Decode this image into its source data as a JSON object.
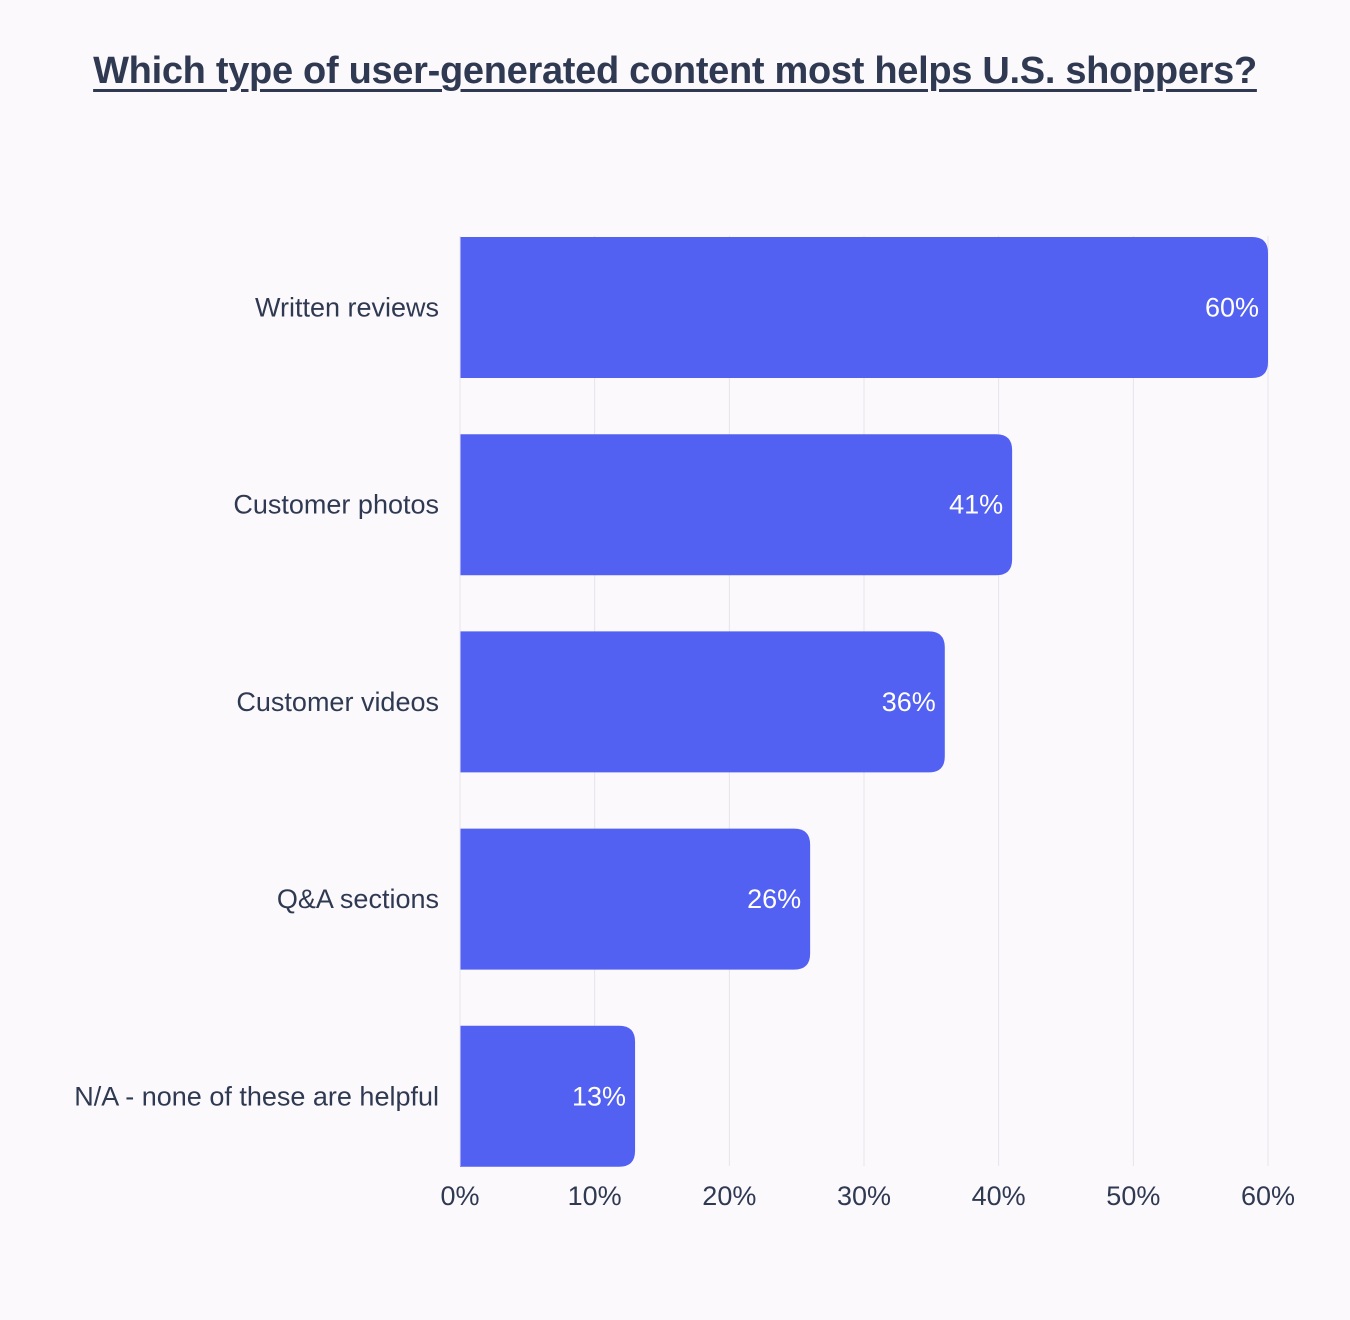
{
  "chart_data": {
    "type": "bar",
    "orientation": "horizontal",
    "title": "Which type of user-generated content most helps U.S. shoppers?",
    "categories": [
      "Written reviews",
      "Customer photos",
      "Customer videos",
      "Q&A sections",
      "N/A - none of these are helpful"
    ],
    "values": [
      60,
      41,
      36,
      26,
      13
    ],
    "value_labels": [
      "60%",
      "41%",
      "36%",
      "26%",
      "13%"
    ],
    "xlim": [
      0,
      60
    ],
    "x_ticks": [
      0,
      10,
      20,
      30,
      40,
      50,
      60
    ],
    "x_tick_labels": [
      "0%",
      "10%",
      "20%",
      "30%",
      "40%",
      "50%",
      "60%"
    ],
    "grid": true,
    "bar_color": "#5361f2",
    "grid_color": "#e6e3ea"
  }
}
